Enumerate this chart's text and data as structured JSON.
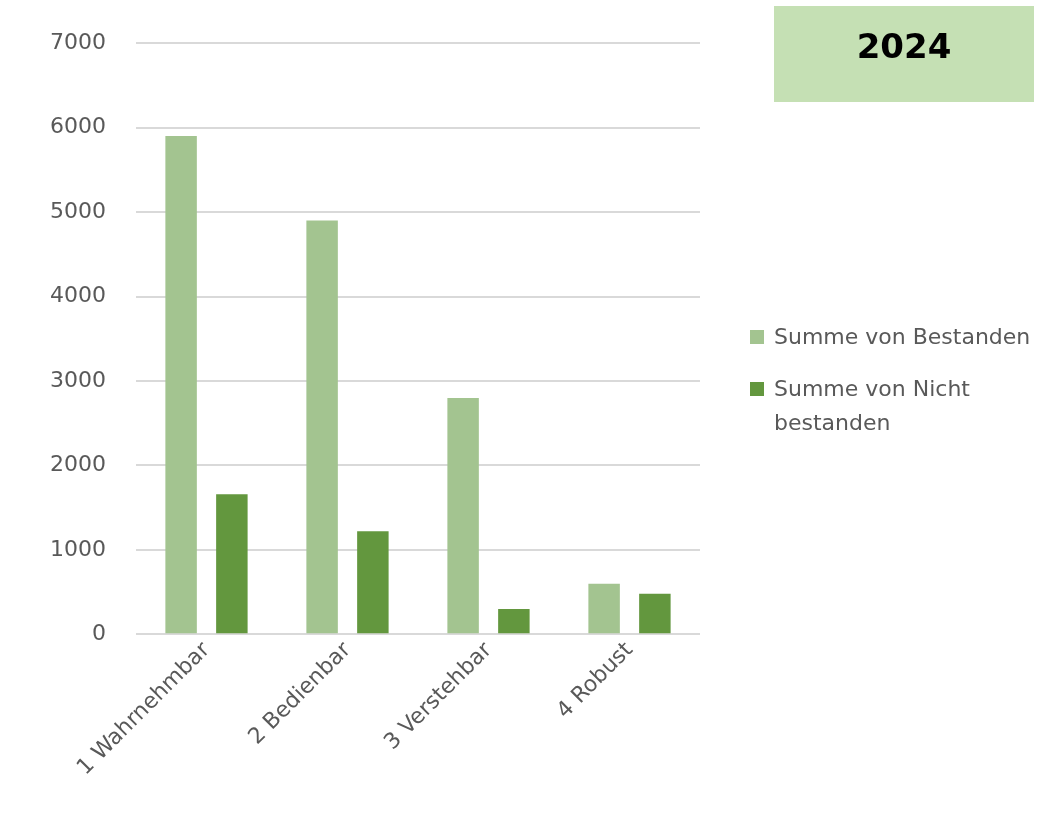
{
  "chart_data": {
    "type": "bar",
    "title": "2024",
    "categories": [
      "1 Wahrnehmbar",
      "2 Bedienbar",
      "3 Verstehbar",
      "4 Robust"
    ],
    "series": [
      {
        "name": "Summe von Bestanden",
        "color": "#a3c490",
        "values": [
          5900,
          4900,
          2800,
          600
        ]
      },
      {
        "name": "Summe von Nicht bestanden",
        "color": "#63973e",
        "values": [
          1660,
          1220,
          300,
          480
        ]
      }
    ],
    "ylim": [
      0,
      7000
    ],
    "yticks": [
      0,
      1000,
      2000,
      3000,
      4000,
      5000,
      6000,
      7000
    ],
    "grid": "y",
    "legend": "right"
  }
}
